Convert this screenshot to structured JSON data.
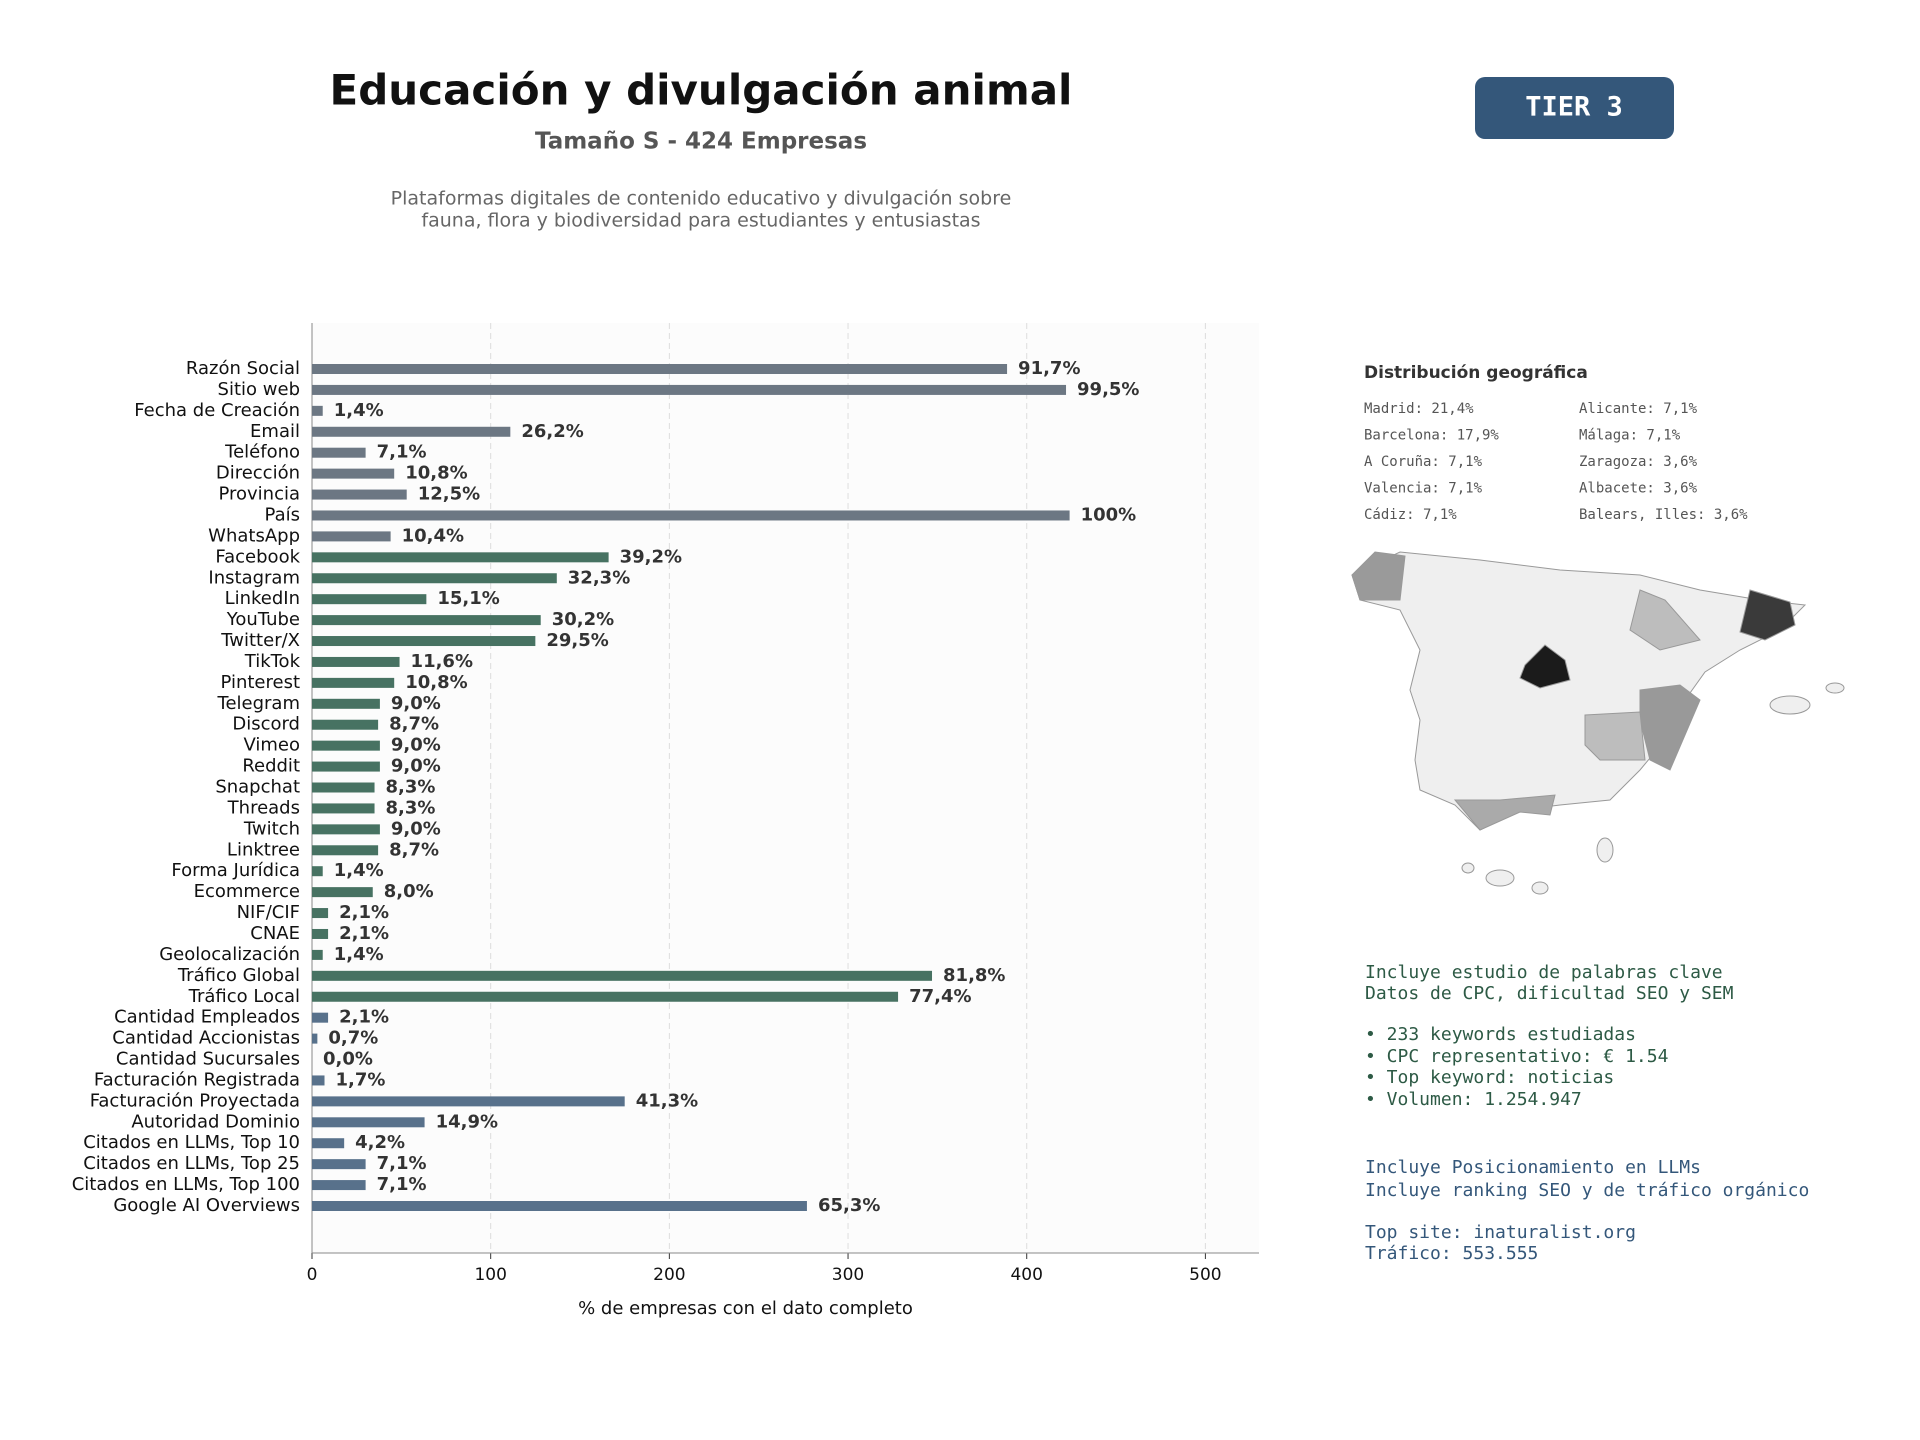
{
  "chart_data": {
    "type": "barh",
    "title": "Educación y divulgación animal",
    "subtitle": "Tamaño S - 424 Empresas",
    "description": [
      "Plataformas digitales de contenido educativo y divulgación sobre",
      "fauna, flora y biodiversidad para estudiantes y entusiastas"
    ],
    "badge": "TIER 3",
    "xlabel": "% de empresas con el dato completo",
    "categories": [
      "Razón Social",
      "Sitio web",
      "Fecha de Creación",
      "Email",
      "Teléfono",
      "Dirección",
      "Provincia",
      "País",
      "WhatsApp",
      "Facebook",
      "Instagram",
      "LinkedIn",
      "YouTube",
      "Twitter/X",
      "TikTok",
      "Pinterest",
      "Telegram",
      "Discord",
      "Vimeo",
      "Reddit",
      "Snapchat",
      "Threads",
      "Twitch",
      "Linktree",
      "Forma Jurídica",
      "Ecommerce",
      "NIF/CIF",
      "CNAE",
      "Geolocalización",
      "Tráfico Global",
      "Tráfico Local",
      "Cantidad Empleados",
      "Cantidad Accionistas",
      "Cantidad Sucursales",
      "Facturación Registrada",
      "Facturación Proyectada",
      "Autoridad Dominio",
      "Citados en LLMs, Top 10",
      "Citados en LLMs, Top 25",
      "Citados en LLMs, Top 100",
      "Google AI Overviews"
    ],
    "values": [
      389,
      422,
      6,
      111,
      30,
      46,
      53,
      424,
      44,
      166,
      137,
      64,
      128,
      125,
      49,
      46,
      38,
      37,
      38,
      38,
      35,
      35,
      38,
      37,
      6,
      34,
      9,
      9,
      6,
      347,
      328,
      9,
      3,
      0,
      7,
      175,
      63,
      18,
      30,
      30,
      277
    ],
    "value_labels": [
      "91,7%",
      "99,5%",
      "1,4%",
      "26,2%",
      "7,1%",
      "10,8%",
      "12,5%",
      "100%",
      "10,4%",
      "39,2%",
      "32,3%",
      "15,1%",
      "30,2%",
      "29,5%",
      "11,6%",
      "10,8%",
      "9,0%",
      "8,7%",
      "9,0%",
      "9,0%",
      "8,3%",
      "8,3%",
      "9,0%",
      "8,7%",
      "1,4%",
      "8,0%",
      "2,1%",
      "2,1%",
      "1,4%",
      "81,8%",
      "77,4%",
      "2,1%",
      "0,7%",
      "0,0%",
      "1,7%",
      "41,3%",
      "14,9%",
      "4,2%",
      "7,1%",
      "7,1%",
      "65,3%"
    ],
    "colors": [
      "#6c7783",
      "#6c7783",
      "#6c7783",
      "#6c7783",
      "#6c7783",
      "#6c7783",
      "#6c7783",
      "#6c7783",
      "#6c7783",
      "#477262",
      "#477262",
      "#477262",
      "#477262",
      "#477262",
      "#477262",
      "#477262",
      "#477262",
      "#477262",
      "#477262",
      "#477262",
      "#477262",
      "#477262",
      "#477262",
      "#477262",
      "#477262",
      "#477262",
      "#477262",
      "#477262",
      "#477262",
      "#477262",
      "#477262",
      "#58718b",
      "#58718b",
      "#58718b",
      "#58718b",
      "#58718b",
      "#58718b",
      "#58718b",
      "#58718b",
      "#58718b",
      "#58718b"
    ],
    "xlim": [
      0,
      530
    ],
    "xticks": [
      0,
      100,
      200,
      300,
      400,
      500
    ],
    "grid": true
  },
  "side": {
    "geo_title": "Distribución geográfica",
    "geo_left": [
      "Madrid: 21,4%",
      "Barcelona: 17,9%",
      "A Coruña: 7,1%",
      "Valencia: 7,1%",
      "Cádiz: 7,1%"
    ],
    "geo_right": [
      "Alicante: 7,1%",
      "Málaga: 7,1%",
      "Zaragoza: 3,6%",
      "Albacete: 3,6%",
      "Balears, Illes: 3,6%"
    ],
    "keywords": [
      "Incluye estudio de palabras clave",
      "Datos de CPC, dificultad SEO y SEM",
      "• 233 keywords estudiadas",
      "• CPC representativo: € 1.54",
      "• Top keyword: noticias",
      "• Volumen: 1.254.947"
    ],
    "llm": [
      "Incluye Posicionamiento en LLMs",
      "Incluye ranking SEO y de tráfico orgánico",
      "Top site: inaturalist.org",
      "Tráfico: 553.555"
    ]
  }
}
